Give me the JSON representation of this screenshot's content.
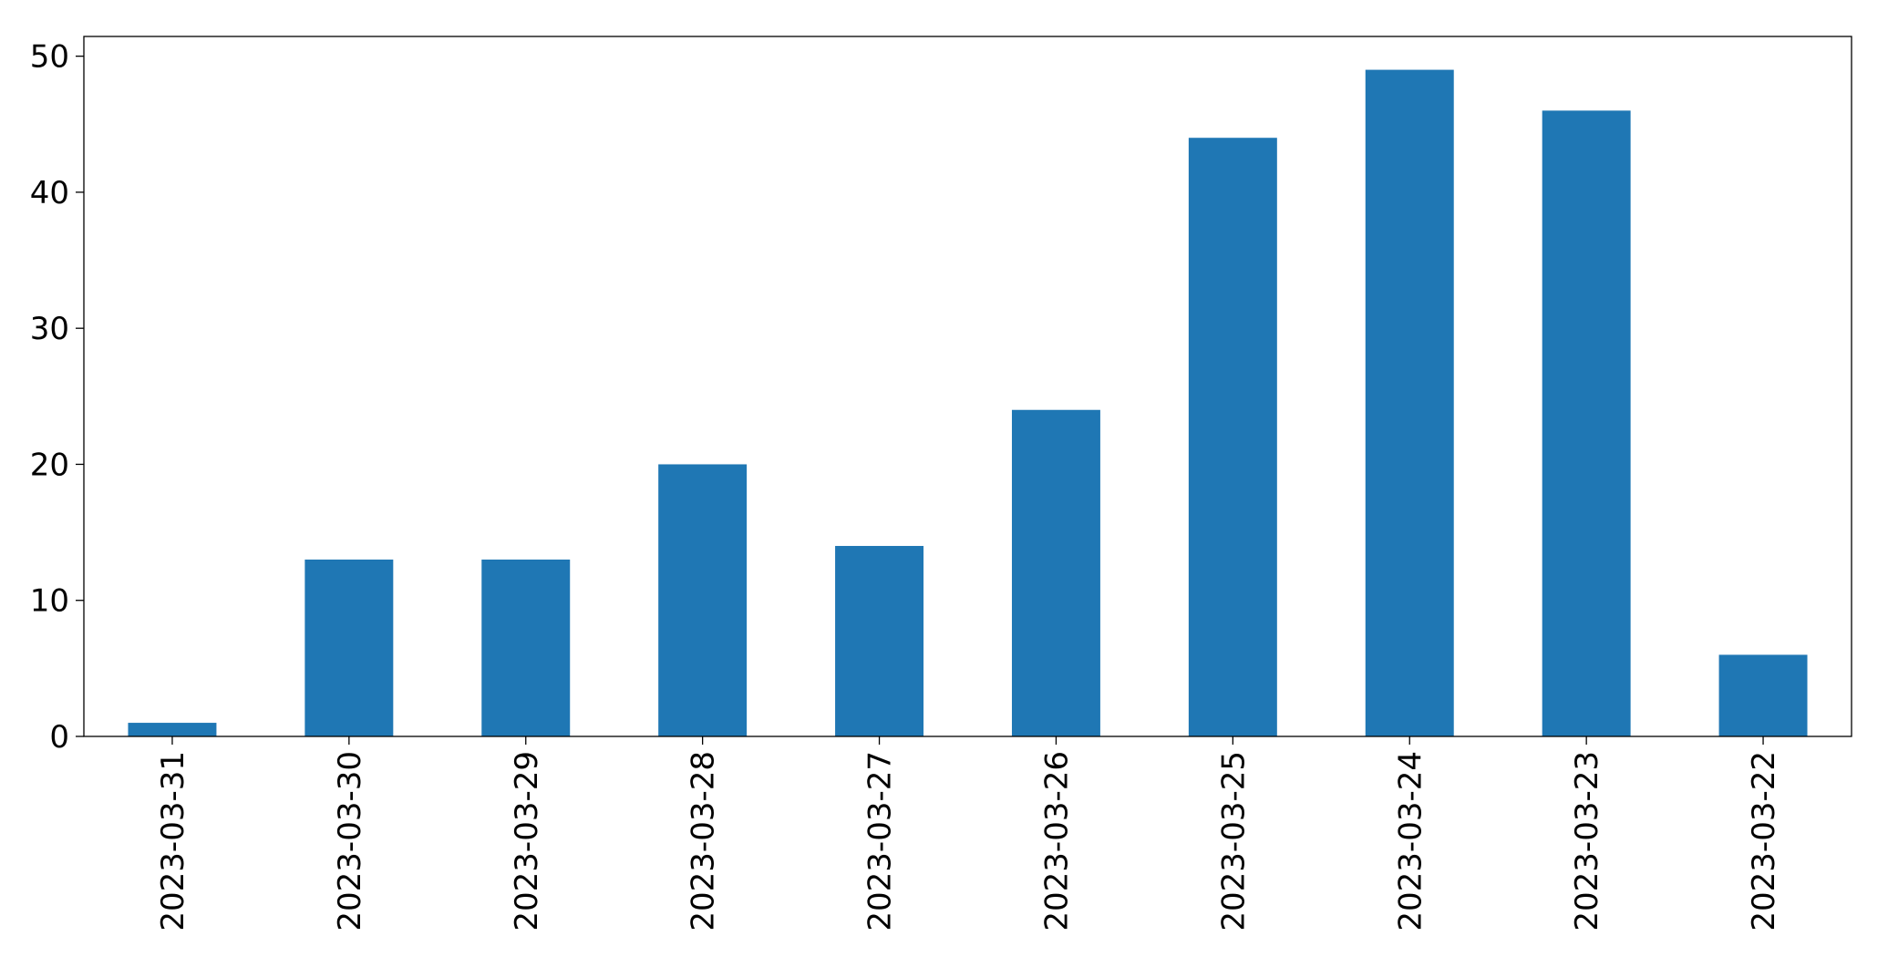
{
  "chart_data": {
    "type": "bar",
    "categories": [
      "2023-03-31",
      "2023-03-30",
      "2023-03-29",
      "2023-03-28",
      "2023-03-27",
      "2023-03-26",
      "2023-03-25",
      "2023-03-24",
      "2023-03-23",
      "2023-03-22"
    ],
    "values": [
      1,
      13,
      13,
      20,
      14,
      24,
      44,
      49,
      46,
      6
    ],
    "color": "#1f77b4",
    "ylim": [
      0,
      51.45
    ],
    "yticks": [
      0,
      10,
      20,
      30,
      40,
      50
    ],
    "grid": false
  }
}
